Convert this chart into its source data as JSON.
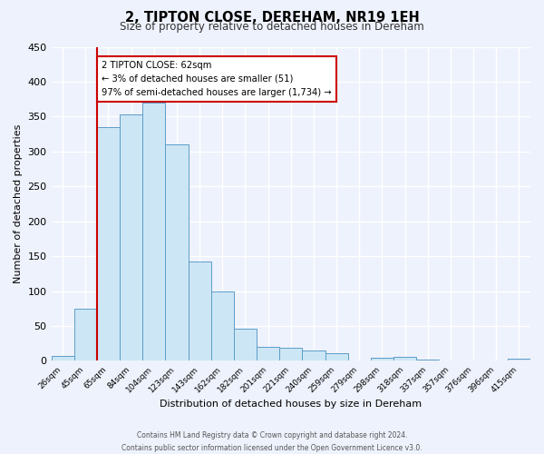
{
  "title": "2, TIPTON CLOSE, DEREHAM, NR19 1EH",
  "subtitle": "Size of property relative to detached houses in Dereham",
  "xlabel": "Distribution of detached houses by size in Dereham",
  "ylabel": "Number of detached properties",
  "bar_labels": [
    "26sqm",
    "45sqm",
    "65sqm",
    "84sqm",
    "104sqm",
    "123sqm",
    "143sqm",
    "162sqm",
    "182sqm",
    "201sqm",
    "221sqm",
    "240sqm",
    "259sqm",
    "279sqm",
    "298sqm",
    "318sqm",
    "337sqm",
    "357sqm",
    "376sqm",
    "396sqm",
    "415sqm"
  ],
  "bar_heights": [
    7,
    75,
    335,
    353,
    370,
    310,
    143,
    99,
    46,
    20,
    19,
    15,
    11,
    0,
    5,
    6,
    2,
    1,
    1,
    0,
    3
  ],
  "bar_color": "#cde6f5",
  "bar_edge_color": "#5b9dc9",
  "vline_color": "#cc0000",
  "annotation_text": "2 TIPTON CLOSE: 62sqm\n← 3% of detached houses are smaller (51)\n97% of semi-detached houses are larger (1,734) →",
  "annotation_box_color": "#ffffff",
  "annotation_box_edge": "#cc0000",
  "ylim": [
    0,
    450
  ],
  "yticks": [
    0,
    50,
    100,
    150,
    200,
    250,
    300,
    350,
    400,
    450
  ],
  "bg_color": "#eef2fc",
  "grid_color": "#ffffff",
  "footer_line1": "Contains HM Land Registry data © Crown copyright and database right 2024.",
  "footer_line2": "Contains public sector information licensed under the Open Government Licence v3.0."
}
